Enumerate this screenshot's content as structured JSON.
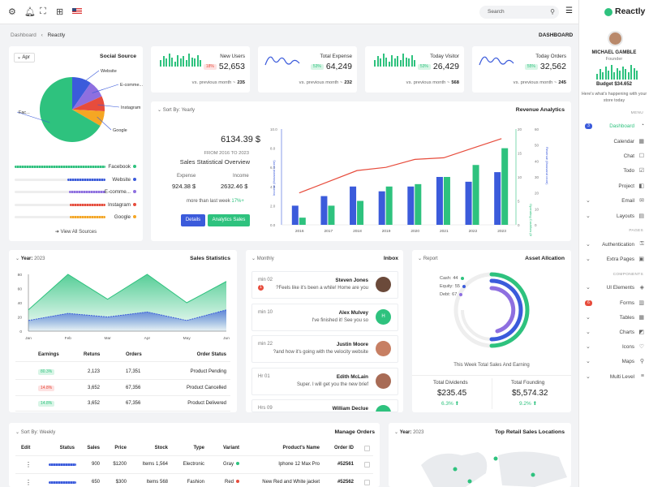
{
  "topbar": {
    "search_placeholder": "Search",
    "icons": [
      "gear-icon",
      "bell-icon",
      "fullscreen-icon",
      "grid-icon",
      "flag-us-icon"
    ]
  },
  "brand": {
    "name": "Reactly"
  },
  "breadcrumb": {
    "root": "Dashboard",
    "sep": "‹",
    "current": "Reactly",
    "page_title": "DASHBOARD"
  },
  "profile": {
    "name": "MICHAEL GAMBLE",
    "role": "Founder",
    "budget": "Budget $34.652",
    "whats_happening": "Here's what's happening with your store today",
    "spark": [
      0.4,
      0.7,
      0.5,
      0.9,
      0.6,
      1.0,
      0.5,
      0.8,
      0.6,
      0.9,
      0.7,
      0.5,
      1.0,
      0.8,
      0.6
    ]
  },
  "nav": {
    "menu_header": "MENU",
    "pages_header": "PAGES",
    "components_header": "COMPONENTS",
    "items": [
      {
        "label": "Dashboard",
        "badge": "3",
        "badge_color": "#3b5bdb"
      },
      {
        "label": "Calendar"
      },
      {
        "label": "Chat"
      },
      {
        "label": "Todo"
      },
      {
        "label": "Project"
      },
      {
        "label": "Email"
      },
      {
        "label": "Layouts"
      },
      {
        "label": "Authentication"
      },
      {
        "label": "Extra Pages"
      },
      {
        "label": "UI Elements"
      },
      {
        "label": "Forms",
        "badge": "6",
        "badge_color": "#e74c3c"
      },
      {
        "label": "Tables"
      },
      {
        "label": "Charts"
      },
      {
        "label": "Icons"
      },
      {
        "label": "Maps"
      },
      {
        "label": "Multi Level"
      }
    ]
  },
  "colors": {
    "accent": "#2ec27e",
    "blue": "#3b5bdb",
    "red": "#e74c3c",
    "purple": "#8e6fe0",
    "orange": "#f5a623"
  },
  "social": {
    "filter": "Apr",
    "title": "Social Source",
    "view_all": "View All Sources",
    "legend": [
      {
        "name": "Facebook",
        "color": "#2ec27e",
        "value": 0.62
      },
      {
        "name": "Website",
        "color": "#3b5bdb",
        "value": 0.09
      },
      {
        "name": "E-comme...",
        "color": "#8e6fe0",
        "value": 0.08
      },
      {
        "name": "Instagram",
        "color": "#e74c3c",
        "value": 0.07
      },
      {
        "name": "Google",
        "color": "#f5a623",
        "value": 0.07
      }
    ],
    "pie_labels": [
      "Website",
      "E-comme...",
      "Instagram",
      "Google",
      "Fac..."
    ]
  },
  "stats": [
    {
      "title": "New Users",
      "change": "18%",
      "change_type": "red",
      "value": "52,653",
      "compare": "vs. previous month ~",
      "compare_value": "235",
      "chart": "bars"
    },
    {
      "title": "Total Expense",
      "change": "53%",
      "change_type": "green",
      "value": "64,249",
      "compare": "vs. previous month ~",
      "compare_value": "232",
      "chart": "line"
    },
    {
      "title": "Today Visitor",
      "change": "53%",
      "change_type": "green",
      "value": "26,429",
      "compare": "vs. previous month ~",
      "compare_value": "568",
      "chart": "bars"
    },
    {
      "title": "Today Orders",
      "change": "55%",
      "change_type": "green",
      "value": "32,562",
      "compare": "vs. previous month ~",
      "compare_value": "245",
      "chart": "line"
    }
  ],
  "revenue": {
    "sort": "Sort By: Yearly",
    "title": "Revenue Analytics",
    "amount": "6134.39 $",
    "range": "FROM 2016 TO 2023",
    "overview": "Sales Statistical Overview",
    "expense_label": "Expense",
    "expense_value": "924.38 $",
    "income_label": "Income",
    "income_value": "2632.46 $",
    "more_than": "more than last week",
    "more_pct": "17%+",
    "btn_details": "Details",
    "btn_analytics": "Analytics Sales"
  },
  "chart_data": [
    {
      "type": "bar",
      "categories": [
        "2016",
        "2017",
        "2018",
        "2019",
        "2020",
        "2021",
        "2022",
        "2023"
      ],
      "series": [
        {
          "name": "Income (thousand crore)",
          "values": [
            2,
            3,
            4,
            3.5,
            4,
            5,
            4.5,
            5.5
          ]
        },
        {
          "name": "Operating Cashflow (thousand crore)",
          "values": [
            1.5,
            4,
            5,
            8,
            8.5,
            10,
            12.5,
            16
          ]
        },
        {
          "name": "Revenue (thousand crore)",
          "values": [
            20,
            27,
            34,
            36,
            41,
            42,
            48,
            54
          ]
        }
      ],
      "ylabel_left": "Income (thousand crore)",
      "ylabel_mid": "Operating Cashflow (thousand crore)",
      "ylabel_right": "Revenue (thousand crore)",
      "yticks_left": [
        "0.0",
        "2.0",
        "4.0",
        "6.0",
        "8.0",
        "10.0"
      ],
      "yticks_mid": [
        "0",
        "5",
        "10",
        "15",
        "20"
      ],
      "yticks_right": [
        "0",
        "10",
        "20",
        "30",
        "40",
        "50",
        "60"
      ]
    },
    {
      "type": "area",
      "categories": [
        "Jan",
        "Feb",
        "Mar",
        "Apr",
        "May",
        "Jun"
      ],
      "series": [
        {
          "values": [
            30,
            80,
            45,
            80,
            40,
            70
          ]
        },
        {
          "values": [
            15,
            25,
            20,
            27,
            15,
            30
          ]
        }
      ],
      "yticks": [
        "0",
        "20",
        "40",
        "60",
        "80"
      ]
    }
  ],
  "sales": {
    "year_label": "Year:",
    "year": "2023",
    "title": "Sales Statistics",
    "headers": [
      "Earnings",
      "Retuns",
      "Orders",
      "Order Status"
    ],
    "rows": [
      {
        "pill": "80.3%",
        "pill_type": "green",
        "returns": "2,123",
        "orders": "17,351",
        "status": "Product Pending"
      },
      {
        "pill": "14.8%",
        "pill_type": "red",
        "returns": "3,652",
        "orders": "67,356",
        "status": "Product Cancelled"
      },
      {
        "pill": "14.8%",
        "pill_type": "green",
        "returns": "3,652",
        "orders": "67,356",
        "status": "Product Delivered"
      }
    ]
  },
  "inbox": {
    "filter": "Monthly",
    "title": "Inbox",
    "items": [
      {
        "time": "min 02",
        "badge": "1",
        "name": "Steven Jones",
        "msg": "?Feels like it's been a while! Home are you",
        "avatar": "#6b4a3a"
      },
      {
        "time": "min 10",
        "name": "Alex Mulvey",
        "msg": "I've finished it! See you so",
        "avatar": "#2ec27e",
        "initial": "H"
      },
      {
        "time": "min 22",
        "name": "Justin Moore",
        "msg": "?and how it's going with the velocity website",
        "avatar": "#c77f63"
      },
      {
        "time": "Hr 01",
        "name": "Edith McLain",
        "msg": "Super. I will get you the new brief",
        "avatar": "#a86b55"
      },
      {
        "time": "Hrs 09",
        "name": "William Declue",
        "msg": "",
        "avatar": "#2ec27e"
      }
    ]
  },
  "report": {
    "filter": "Report",
    "title": "Asset Allcation",
    "legend": [
      {
        "label": "Cash:",
        "value": "44",
        "color": "#2ec27e"
      },
      {
        "label": "Equity:",
        "value": "55",
        "color": "#3b5bdb"
      },
      {
        "label": "Debt:",
        "value": "67",
        "color": "#8e6fe0"
      }
    ],
    "caption": "This Week Total Sales And Earning",
    "dividends_label": "Total Dividends",
    "dividends_value": "$235.45",
    "dividends_pct": "6.3%",
    "founding_label": "Total Founding",
    "founding_value": "$5,574.32",
    "founding_pct": "9.2%"
  },
  "orders": {
    "sort": "Sort By: Weekly",
    "title": "Manage Orders",
    "headers": [
      "Edit",
      "Status",
      "Sales",
      "Price",
      "Stock",
      "Type",
      "Variant",
      "Product's Name",
      "Order ID"
    ],
    "rows": [
      {
        "sales": "900",
        "price": "$1200",
        "stock": "Items 1,564",
        "type": "Electronic",
        "variant": "Gray",
        "variant_color": "#2ec27e",
        "name": "Iphone 12 Max Pro",
        "id": "#52561"
      },
      {
        "sales": "650",
        "price": "$300",
        "stock": "Items 568",
        "type": "Fashion",
        "variant": "Red",
        "variant_color": "#e74c3c",
        "name": "New Red and White jacket",
        "id": "#52562"
      }
    ]
  },
  "locations": {
    "year_label": "Year:",
    "year": "2023",
    "title": "Top Retail Sales Locations"
  }
}
